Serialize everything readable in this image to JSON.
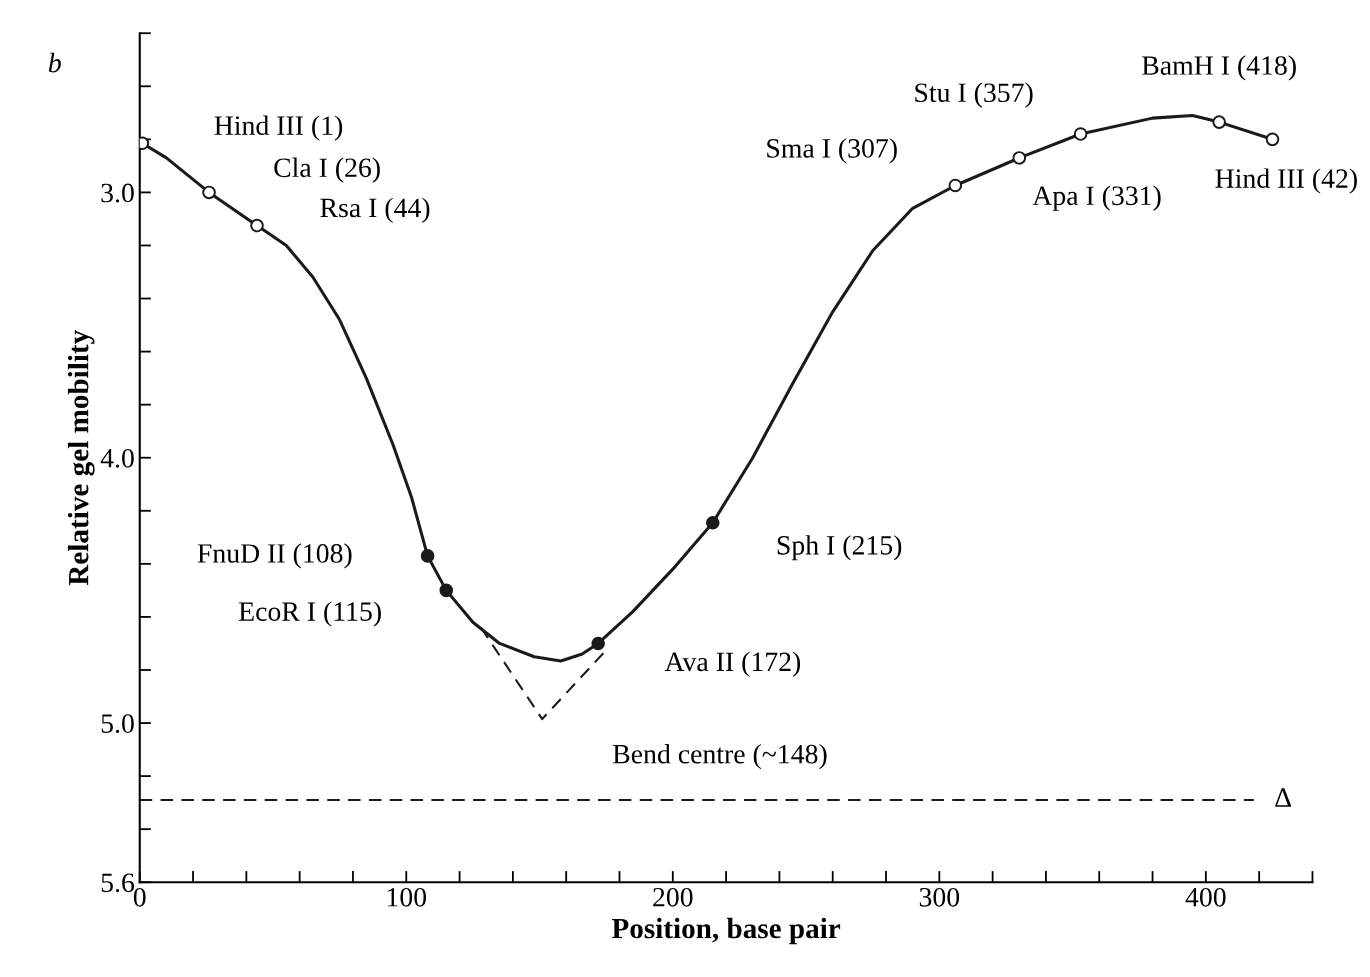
{
  "chart_data": {
    "type": "line",
    "xlabel": "Position, base pair",
    "ylabel": "Relative gel mobility",
    "xlim": [
      0,
      440
    ],
    "ylim": [
      5.6,
      2.4
    ],
    "xticks": [
      0,
      {
        "value": 20,
        "label": null
      },
      {
        "value": 40,
        "label": null
      },
      {
        "value": 60,
        "label": null
      },
      {
        "value": 80,
        "label": null
      },
      100,
      {
        "value": 120,
        "label": null
      },
      {
        "value": 140,
        "label": null
      },
      {
        "value": 160,
        "label": null
      },
      {
        "value": 180,
        "label": null
      },
      200,
      {
        "value": 220,
        "label": null
      },
      {
        "value": 240,
        "label": null
      },
      {
        "value": 260,
        "label": null
      },
      {
        "value": 280,
        "label": null
      },
      300,
      {
        "value": 320,
        "label": null
      },
      {
        "value": 340,
        "label": null
      },
      {
        "value": 360,
        "label": null
      },
      {
        "value": 380,
        "label": null
      },
      400,
      {
        "value": 420,
        "label": null
      },
      {
        "value": 440,
        "label": null
      }
    ],
    "yticks": [
      {
        "value": 2.4,
        "label": null
      },
      {
        "value": 2.6,
        "label": null
      },
      {
        "value": 2.8,
        "label": null
      },
      {
        "value": 3.0,
        "label": "3.0"
      },
      {
        "value": 3.2,
        "label": null
      },
      {
        "value": 3.4,
        "label": null
      },
      {
        "value": 3.6,
        "label": null
      },
      {
        "value": 3.8,
        "label": null
      },
      {
        "value": 4.0,
        "label": "4.0"
      },
      {
        "value": 4.2,
        "label": null
      },
      {
        "value": 4.4,
        "label": null
      },
      {
        "value": 4.6,
        "label": null
      },
      {
        "value": 4.8,
        "label": null
      },
      {
        "value": 5.0,
        "label": "5.0"
      },
      {
        "value": 5.2,
        "label": null
      },
      {
        "value": 5.4,
        "label": null
      },
      {
        "value": 5.6,
        "label": "5.6"
      }
    ],
    "grid": false,
    "legend": false,
    "series": [
      {
        "color": "#1a1a1a",
        "line_style": "solid",
        "marker": "none",
        "x": [
          1,
          10,
          26,
          44,
          55,
          65,
          75,
          85,
          95,
          102,
          108,
          115,
          125,
          135,
          148,
          158,
          166,
          172,
          185,
          200,
          215,
          230,
          245,
          260,
          275,
          290,
          306,
          330,
          353,
          380,
          395,
          405,
          425
        ],
        "values": [
          2.815,
          2.87,
          3.0,
          3.125,
          3.2,
          3.32,
          3.48,
          3.7,
          3.95,
          4.15,
          4.37,
          4.5,
          4.62,
          4.7,
          4.75,
          4.766,
          4.74,
          4.7,
          4.58,
          4.42,
          4.245,
          4.0,
          3.72,
          3.45,
          3.22,
          3.06,
          2.974,
          2.87,
          2.78,
          2.72,
          2.71,
          2.735,
          2.8
        ]
      },
      {
        "color": "#1a1a1a",
        "line_style": "dashed",
        "marker": "none",
        "x": [
          128,
          151,
          174
        ],
        "values": [
          4.64,
          4.985,
          4.736
        ]
      },
      {
        "type": "scatter",
        "color": "#ffffff",
        "marker": "circle",
        "x": [
          1,
          26,
          44,
          306,
          330,
          353,
          405,
          425
        ],
        "values": [
          2.815,
          3.0,
          3.125,
          2.974,
          2.87,
          2.78,
          2.735,
          2.8
        ]
      },
      {
        "type": "scatter",
        "color": "#1a1a1a",
        "marker": "circle",
        "x": [
          108,
          115,
          172,
          215
        ],
        "values": [
          4.37,
          4.5,
          4.7,
          4.245
        ]
      }
    ],
    "ref_lines": [
      {
        "axis": "y",
        "value": 5.29,
        "label": "Δ",
        "line_style": "dashed",
        "color": "#1a1a1a"
      }
    ],
    "annotations": [
      {
        "text": "Hind III (1)",
        "x": 1,
        "y": 2.815
      },
      {
        "text": "Cla I (26)",
        "x": 26,
        "y": 3.0
      },
      {
        "text": "Rsa I (44)",
        "x": 44,
        "y": 3.125
      },
      {
        "text": "FnuD II (108)",
        "x": 108,
        "y": 4.37
      },
      {
        "text": "EcoR I (115)",
        "x": 115,
        "y": 4.5
      },
      {
        "text": "Ava II (172)",
        "x": 172,
        "y": 4.7
      },
      {
        "text": "Sph I (215)",
        "x": 215,
        "y": 4.245
      },
      {
        "text": "Bend centre (~148)",
        "x": 151,
        "y": 4.985
      },
      {
        "text": "Sma I (307)",
        "x": 306,
        "y": 2.974
      },
      {
        "text": "Apa I (331)",
        "x": 330,
        "y": 2.87
      },
      {
        "text": "Stu I (357)",
        "x": 353,
        "y": 2.78
      },
      {
        "text": "BamH I (418)",
        "x": 405,
        "y": 2.735
      },
      {
        "text": "Hind III (42)",
        "x": 425,
        "y": 2.8
      },
      "b"
    ]
  }
}
